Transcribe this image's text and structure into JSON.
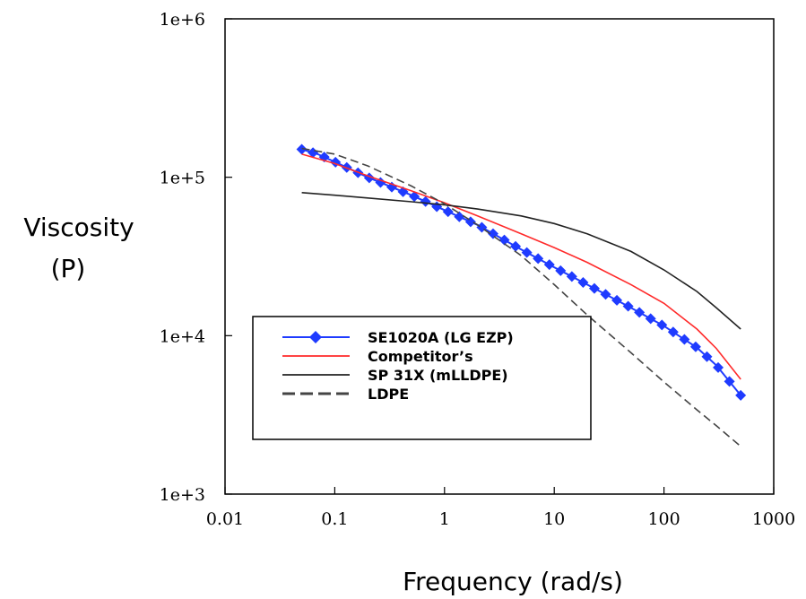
{
  "chart_data": {
    "type": "line",
    "xscale": "log",
    "yscale": "log",
    "xlim": [
      0.01,
      1000
    ],
    "ylim": [
      1000,
      1000000
    ],
    "xlabel": "Frequency (rad/s)",
    "ylabel_line1": "Viscosity",
    "ylabel_line2": "(P)",
    "x_ticks": [
      "0.01",
      "0.1",
      "1",
      "10",
      "100",
      "1000"
    ],
    "y_ticks": [
      "1e+3",
      "1e+4",
      "1e+5",
      "1e+6"
    ],
    "grid": false,
    "legend_position": "lower-left",
    "series": [
      {
        "name": "SE1020A (LG EZP)",
        "color": "#1f3bff",
        "style": "line-markers",
        "x": [
          0.05,
          0.07,
          0.1,
          0.2,
          0.5,
          1,
          2,
          5,
          10,
          20,
          50,
          100,
          200,
          300,
          500
        ],
        "y": [
          150000,
          140000,
          125000,
          100000,
          77000,
          62000,
          50000,
          35000,
          27000,
          21000,
          15000,
          11500,
          8400,
          6500,
          4200
        ]
      },
      {
        "name": "Competitor’s",
        "color": "#ff2a2a",
        "style": "solid",
        "x": [
          0.05,
          0.1,
          0.2,
          0.5,
          1,
          2,
          5,
          10,
          20,
          50,
          100,
          200,
          300,
          500
        ],
        "y": [
          140000,
          122000,
          102000,
          82000,
          69000,
          57000,
          44000,
          36000,
          29000,
          21000,
          16000,
          11000,
          8300,
          5300
        ]
      },
      {
        "name": "SP 31X (mLLDPE)",
        "color": "#222222",
        "style": "solid",
        "x": [
          0.05,
          0.1,
          0.2,
          0.5,
          1,
          2,
          5,
          10,
          20,
          50,
          100,
          200,
          300,
          500
        ],
        "y": [
          80000,
          77000,
          74000,
          70000,
          67000,
          63000,
          57000,
          51000,
          44000,
          34000,
          26000,
          19000,
          15000,
          11000
        ]
      },
      {
        "name": "LDPE",
        "color": "#444444",
        "style": "dashed",
        "x": [
          0.05,
          0.1,
          0.2,
          0.5,
          1,
          2,
          5,
          10,
          20,
          50,
          100,
          200,
          300,
          500
        ],
        "y": [
          152000,
          140000,
          118000,
          88000,
          68000,
          50000,
          32000,
          21000,
          13500,
          7800,
          5100,
          3400,
          2700,
          2000
        ]
      }
    ]
  }
}
